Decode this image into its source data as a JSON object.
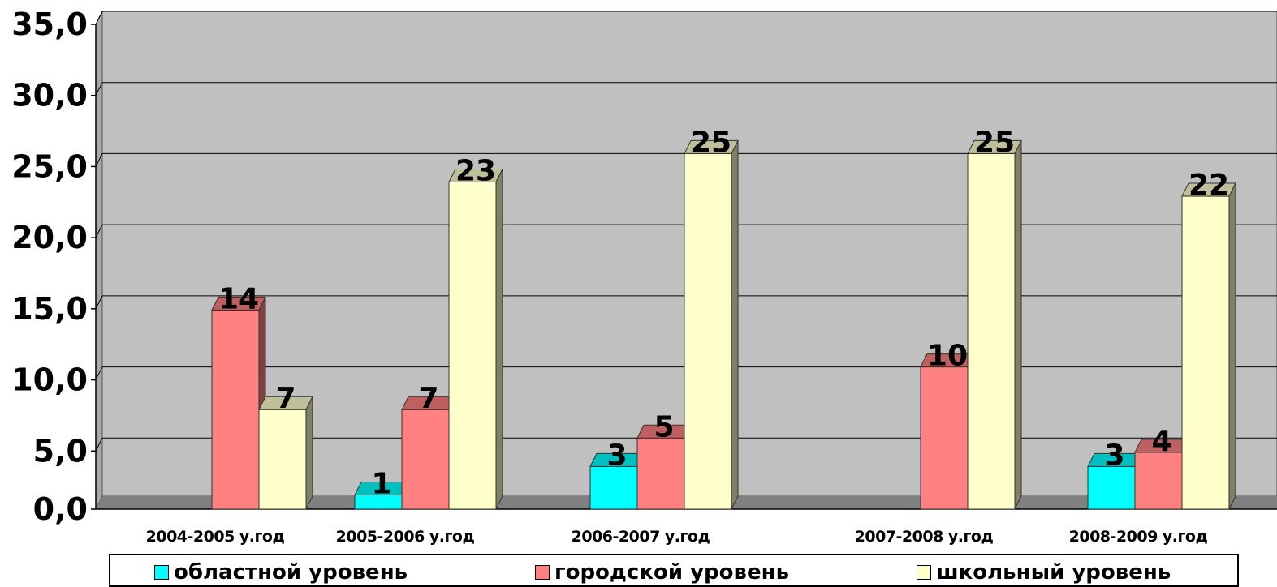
{
  "chart_data": {
    "type": "bar",
    "categories": [
      "2004-2005 у.год",
      "2005-2006 у.год",
      "2006-2007 у.год",
      "2007-2008 у.год",
      "2008-2009 у.год"
    ],
    "series": [
      {
        "name": "областной уровень",
        "color": "#00FFFF",
        "values": [
          null,
          1,
          3,
          null,
          3
        ],
        "labels": [
          "",
          "1",
          "3",
          "",
          "3"
        ]
      },
      {
        "name": "городской уровень",
        "color": "#FF8080",
        "values": [
          14,
          7,
          5,
          10,
          4
        ],
        "labels": [
          "14",
          "7",
          "5",
          "10",
          "4"
        ]
      },
      {
        "name": "школьный уровень",
        "color": "#FFFFCC",
        "values": [
          7,
          23,
          25,
          25,
          22
        ],
        "labels": [
          "7",
          "23",
          "25",
          "25",
          "22"
        ]
      }
    ],
    "ylim": [
      0,
      35
    ],
    "yticks": [
      "0,0",
      "5,0",
      "10,0",
      "15,0",
      "20,0",
      "25,0",
      "30,0",
      "35,0"
    ],
    "grid": true,
    "legend_position": "bottom",
    "plot_background": "#C0C0C0",
    "floor_color": "#808080"
  }
}
